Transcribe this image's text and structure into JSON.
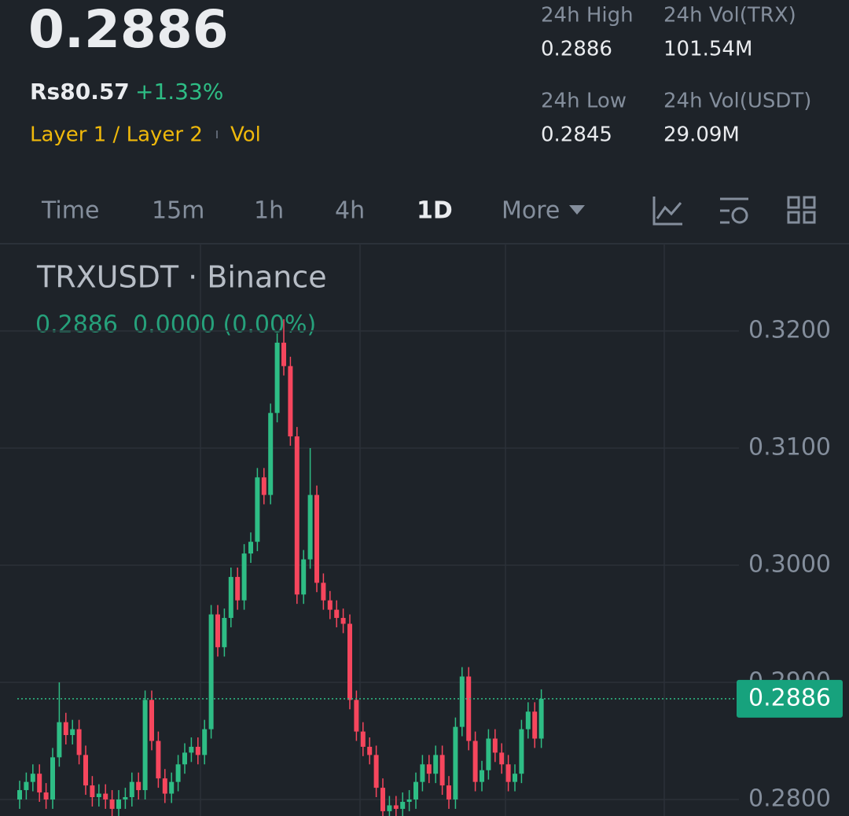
{
  "header": {
    "price": "0.2886",
    "fiat_price": "Rs80.57",
    "change": "+1.33%",
    "tags": [
      "Layer 1 / Layer 2",
      "Vol"
    ]
  },
  "stats": [
    {
      "label": "24h High",
      "value": "0.2886"
    },
    {
      "label": "24h Vol(TRX)",
      "value": "101.54M"
    },
    {
      "label": "24h Low",
      "value": "0.2845"
    },
    {
      "label": "24h Vol(USDT)",
      "value": "29.09M"
    }
  ],
  "tabs": [
    "Time",
    "15m",
    "1h",
    "4h",
    "1D",
    "More"
  ],
  "chart_data": {
    "type": "candlestick",
    "title": "TRXUSDT · Binance",
    "subtitle": "0.2886  0.0000 (0.00%)",
    "up_color": "#2ebd85",
    "down_color": "#f6465d",
    "grid": true,
    "ylim": [
      0.27859,
      0.32745
    ],
    "yticks": [
      {
        "value": 0.28,
        "label": "0.2800"
      },
      {
        "value": 0.29,
        "label": "0.2900"
      },
      {
        "value": 0.3,
        "label": "0.3000"
      },
      {
        "value": 0.31,
        "label": "0.3100"
      },
      {
        "value": 0.32,
        "label": "0.3200"
      }
    ],
    "last_price": 0.2886,
    "open": [
      0.28,
      0.2808,
      0.2815,
      0.2822,
      0.2806,
      0.28,
      0.2836,
      0.2866,
      0.2855,
      0.286,
      0.2838,
      0.2812,
      0.2802,
      0.2805,
      0.28,
      0.2792,
      0.28,
      0.2802,
      0.2815,
      0.2808,
      0.2885,
      0.285,
      0.2818,
      0.2805,
      0.2815,
      0.283,
      0.284,
      0.2845,
      0.2838,
      0.286,
      0.2958,
      0.293,
      0.2955,
      0.299,
      0.297,
      0.301,
      0.302,
      0.3075,
      0.306,
      0.313,
      0.319,
      0.317,
      0.311,
      0.2975,
      0.3005,
      0.306,
      0.2985,
      0.297,
      0.2962,
      0.2955,
      0.295,
      0.2885,
      0.2858,
      0.2845,
      0.2838,
      0.281,
      0.279,
      0.2795,
      0.2792,
      0.2798,
      0.28,
      0.2815,
      0.283,
      0.2822,
      0.2838,
      0.2812,
      0.28,
      0.2862,
      0.2905,
      0.285,
      0.2815,
      0.2825,
      0.2852,
      0.284,
      0.283,
      0.2815,
      0.2822,
      0.286,
      0.2875,
      0.2852
    ],
    "high": [
      0.2816,
      0.2823,
      0.283,
      0.283,
      0.2814,
      0.2844,
      0.29,
      0.2874,
      0.2868,
      0.2868,
      0.2846,
      0.282,
      0.2813,
      0.2813,
      0.2808,
      0.2808,
      0.281,
      0.2823,
      0.2823,
      0.2893,
      0.2893,
      0.2858,
      0.2826,
      0.2823,
      0.2838,
      0.2848,
      0.2853,
      0.2853,
      0.2868,
      0.2966,
      0.2966,
      0.2963,
      0.2998,
      0.2998,
      0.3018,
      0.3028,
      0.3083,
      0.3083,
      0.3138,
      0.3198,
      0.321,
      0.3178,
      0.3118,
      0.3013,
      0.31,
      0.3068,
      0.2993,
      0.2978,
      0.297,
      0.2963,
      0.2958,
      0.2893,
      0.2866,
      0.2853,
      0.2846,
      0.2818,
      0.2803,
      0.2803,
      0.2806,
      0.2808,
      0.2823,
      0.2838,
      0.2838,
      0.2846,
      0.2846,
      0.282,
      0.287,
      0.2913,
      0.2913,
      0.2858,
      0.2833,
      0.286,
      0.286,
      0.2848,
      0.2838,
      0.283,
      0.2868,
      0.2883,
      0.2883,
      0.2894
    ],
    "low": [
      0.2792,
      0.28,
      0.2807,
      0.2798,
      0.2792,
      0.2792,
      0.2828,
      0.2847,
      0.2847,
      0.283,
      0.2804,
      0.2794,
      0.2794,
      0.2792,
      0.2784,
      0.2784,
      0.2792,
      0.2794,
      0.28,
      0.28,
      0.2842,
      0.281,
      0.2797,
      0.2797,
      0.2807,
      0.2822,
      0.2832,
      0.283,
      0.283,
      0.2852,
      0.2922,
      0.2922,
      0.2947,
      0.2962,
      0.2962,
      0.3002,
      0.3012,
      0.3052,
      0.3052,
      0.3122,
      0.3162,
      0.3102,
      0.2967,
      0.2967,
      0.2997,
      0.2977,
      0.2962,
      0.2954,
      0.2947,
      0.2942,
      0.2877,
      0.285,
      0.2837,
      0.283,
      0.2802,
      0.2782,
      0.2782,
      0.2784,
      0.2784,
      0.279,
      0.2792,
      0.2807,
      0.2814,
      0.2814,
      0.2804,
      0.2792,
      0.2792,
      0.2854,
      0.2842,
      0.2807,
      0.2807,
      0.2817,
      0.2832,
      0.2822,
      0.2807,
      0.2807,
      0.2814,
      0.2852,
      0.2844,
      0.2844
    ],
    "close": [
      0.2808,
      0.2815,
      0.2822,
      0.2806,
      0.28,
      0.2836,
      0.2866,
      0.2855,
      0.286,
      0.2838,
      0.2812,
      0.2802,
      0.2805,
      0.28,
      0.2792,
      0.28,
      0.2802,
      0.2815,
      0.2808,
      0.2885,
      0.285,
      0.2818,
      0.2805,
      0.2815,
      0.283,
      0.284,
      0.2845,
      0.2838,
      0.286,
      0.2958,
      0.293,
      0.2955,
      0.299,
      0.297,
      0.301,
      0.302,
      0.3075,
      0.306,
      0.313,
      0.319,
      0.317,
      0.311,
      0.2975,
      0.3005,
      0.306,
      0.2985,
      0.297,
      0.2962,
      0.2955,
      0.295,
      0.2885,
      0.2858,
      0.2845,
      0.2838,
      0.281,
      0.279,
      0.2795,
      0.2792,
      0.2798,
      0.28,
      0.2815,
      0.283,
      0.2822,
      0.2838,
      0.2812,
      0.28,
      0.2862,
      0.2905,
      0.285,
      0.2815,
      0.2825,
      0.2852,
      0.284,
      0.283,
      0.2815,
      0.2822,
      0.286,
      0.2875,
      0.2852,
      0.2886
    ]
  }
}
